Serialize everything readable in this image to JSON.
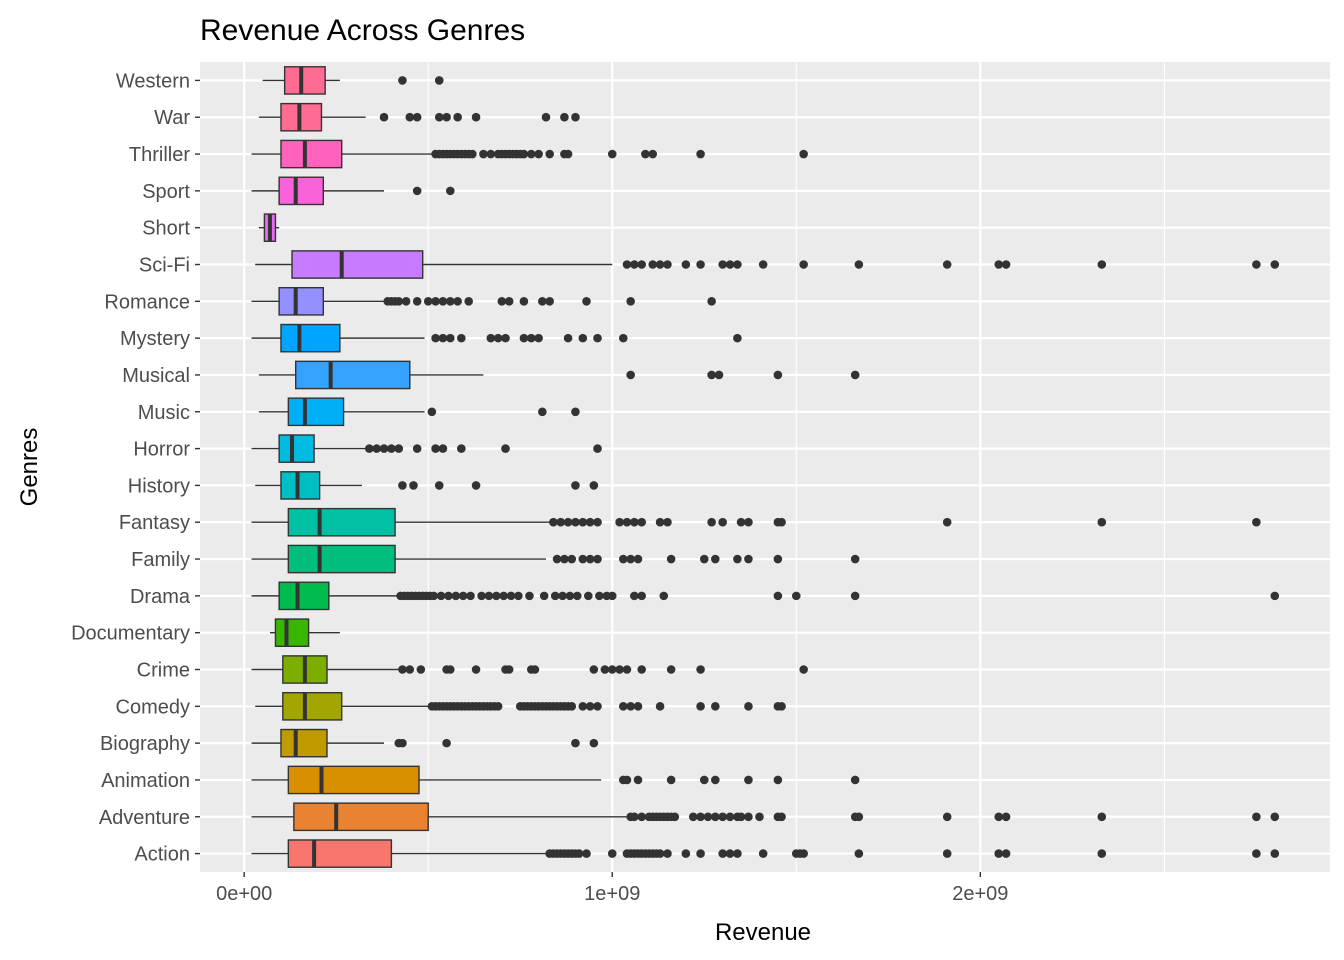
{
  "chart_data": {
    "type": "boxplot",
    "title": "Revenue Across Genres",
    "xlabel": "Revenue",
    "ylabel": "Genres",
    "xlim": [
      -120000000,
      2950000000
    ],
    "x_ticks": [
      {
        "value": 0,
        "label": "0e+00"
      },
      {
        "value": 1000000000,
        "label": "1e+09"
      },
      {
        "value": 2000000000,
        "label": "2e+09"
      }
    ],
    "x_minor_ticks": [
      500000000,
      1500000000,
      2500000000
    ],
    "grid": true,
    "legend": "none",
    "categories": [
      "Action",
      "Adventure",
      "Animation",
      "Biography",
      "Comedy",
      "Crime",
      "Documentary",
      "Drama",
      "Family",
      "Fantasy",
      "History",
      "Horror",
      "Music",
      "Musical",
      "Mystery",
      "Romance",
      "Sci-Fi",
      "Short",
      "Sport",
      "Thriller",
      "War",
      "Western"
    ],
    "colors": [
      "#F8766D",
      "#EA8331",
      "#D89000",
      "#C09B00",
      "#A3A500",
      "#7CAE00",
      "#39B600",
      "#00BB4E",
      "#00BF7D",
      "#00C1A3",
      "#00BFC4",
      "#00BAE0",
      "#00B0F6",
      "#35A2FF",
      "#00A5FF",
      "#9590FF",
      "#C77CFF",
      "#E76BF3",
      "#FA62DB",
      "#FF62BC",
      "#FF6C91",
      "#FF6C91"
    ],
    "boxes": [
      {
        "genre": "Action",
        "whisker_low": 20000000,
        "q1": 120000000,
        "median": 190000000,
        "q3": 400000000,
        "whisker_high": 820000000,
        "outliers": [
          830000000,
          840000000,
          850000000,
          860000000,
          870000000,
          880000000,
          890000000,
          900000000,
          910000000,
          930000000,
          1000000000,
          1040000000,
          1050000000,
          1060000000,
          1070000000,
          1080000000,
          1090000000,
          1100000000,
          1110000000,
          1120000000,
          1130000000,
          1150000000,
          1200000000,
          1240000000,
          1300000000,
          1320000000,
          1340000000,
          1410000000,
          1500000000,
          1510000000,
          1520000000,
          1670000000,
          1910000000,
          2050000000,
          2070000000,
          2330000000,
          2750000000,
          2800000000
        ]
      },
      {
        "genre": "Adventure",
        "whisker_low": 20000000,
        "q1": 135000000,
        "median": 250000000,
        "q3": 500000000,
        "whisker_high": 1040000000,
        "outliers": [
          1050000000,
          1060000000,
          1080000000,
          1100000000,
          1110000000,
          1120000000,
          1130000000,
          1140000000,
          1150000000,
          1160000000,
          1170000000,
          1220000000,
          1240000000,
          1260000000,
          1280000000,
          1300000000,
          1320000000,
          1340000000,
          1350000000,
          1370000000,
          1400000000,
          1450000000,
          1460000000,
          1660000000,
          1670000000,
          1910000000,
          2050000000,
          2070000000,
          2330000000,
          2750000000,
          2800000000
        ]
      },
      {
        "genre": "Animation",
        "whisker_low": 20000000,
        "q1": 120000000,
        "median": 210000000,
        "q3": 475000000,
        "whisker_high": 970000000,
        "outliers": [
          1030000000,
          1040000000,
          1070000000,
          1160000000,
          1250000000,
          1280000000,
          1370000000,
          1450000000,
          1660000000
        ]
      },
      {
        "genre": "Biography",
        "whisker_low": 20000000,
        "q1": 100000000,
        "median": 140000000,
        "q3": 225000000,
        "whisker_high": 380000000,
        "outliers": [
          420000000,
          430000000,
          550000000,
          900000000,
          950000000
        ]
      },
      {
        "genre": "Comedy",
        "whisker_low": 30000000,
        "q1": 105000000,
        "median": 165000000,
        "q3": 265000000,
        "whisker_high": 500000000,
        "outliers": [
          510000000,
          520000000,
          530000000,
          540000000,
          550000000,
          560000000,
          570000000,
          580000000,
          590000000,
          600000000,
          610000000,
          620000000,
          630000000,
          640000000,
          650000000,
          660000000,
          670000000,
          680000000,
          690000000,
          750000000,
          760000000,
          770000000,
          780000000,
          790000000,
          800000000,
          810000000,
          820000000,
          830000000,
          840000000,
          850000000,
          860000000,
          870000000,
          880000000,
          890000000,
          920000000,
          940000000,
          960000000,
          1030000000,
          1050000000,
          1070000000,
          1130000000,
          1240000000,
          1280000000,
          1370000000,
          1450000000,
          1460000000
        ]
      },
      {
        "genre": "Crime",
        "whisker_low": 20000000,
        "q1": 105000000,
        "median": 165000000,
        "q3": 225000000,
        "whisker_high": 420000000,
        "outliers": [
          430000000,
          450000000,
          480000000,
          550000000,
          560000000,
          630000000,
          710000000,
          720000000,
          780000000,
          790000000,
          950000000,
          980000000,
          1000000000,
          1020000000,
          1040000000,
          1080000000,
          1160000000,
          1240000000,
          1520000000
        ]
      },
      {
        "genre": "Documentary",
        "whisker_low": 70000000,
        "q1": 85000000,
        "median": 115000000,
        "q3": 175000000,
        "whisker_high": 260000000,
        "outliers": []
      },
      {
        "genre": "Drama",
        "whisker_low": 20000000,
        "q1": 95000000,
        "median": 145000000,
        "q3": 230000000,
        "whisker_high": 420000000,
        "outliers": [
          425000000,
          435000000,
          445000000,
          455000000,
          465000000,
          475000000,
          485000000,
          495000000,
          505000000,
          515000000,
          535000000,
          555000000,
          575000000,
          595000000,
          615000000,
          645000000,
          665000000,
          685000000,
          705000000,
          725000000,
          745000000,
          775000000,
          815000000,
          845000000,
          865000000,
          885000000,
          905000000,
          935000000,
          965000000,
          985000000,
          1000000000,
          1060000000,
          1080000000,
          1140000000,
          1450000000,
          1500000000,
          1660000000,
          2800000000
        ]
      },
      {
        "genre": "Family",
        "whisker_low": 20000000,
        "q1": 120000000,
        "median": 205000000,
        "q3": 410000000,
        "whisker_high": 820000000,
        "outliers": [
          850000000,
          870000000,
          890000000,
          920000000,
          940000000,
          960000000,
          1030000000,
          1050000000,
          1070000000,
          1160000000,
          1250000000,
          1280000000,
          1340000000,
          1370000000,
          1450000000,
          1660000000
        ]
      },
      {
        "genre": "Fantasy",
        "whisker_low": 20000000,
        "q1": 120000000,
        "median": 205000000,
        "q3": 410000000,
        "whisker_high": 830000000,
        "outliers": [
          840000000,
          860000000,
          880000000,
          900000000,
          920000000,
          940000000,
          960000000,
          1020000000,
          1040000000,
          1060000000,
          1080000000,
          1130000000,
          1150000000,
          1270000000,
          1300000000,
          1350000000,
          1370000000,
          1450000000,
          1460000000,
          1910000000,
          2330000000,
          2750000000
        ]
      },
      {
        "genre": "History",
        "whisker_low": 30000000,
        "q1": 100000000,
        "median": 145000000,
        "q3": 205000000,
        "whisker_high": 320000000,
        "outliers": [
          430000000,
          460000000,
          530000000,
          630000000,
          900000000,
          950000000
        ]
      },
      {
        "genre": "Horror",
        "whisker_low": 20000000,
        "q1": 95000000,
        "median": 130000000,
        "q3": 190000000,
        "whisker_high": 330000000,
        "outliers": [
          340000000,
          360000000,
          380000000,
          400000000,
          420000000,
          470000000,
          520000000,
          540000000,
          590000000,
          710000000,
          960000000
        ]
      },
      {
        "genre": "Music",
        "whisker_low": 40000000,
        "q1": 120000000,
        "median": 165000000,
        "q3": 270000000,
        "whisker_high": 490000000,
        "outliers": [
          510000000,
          810000000,
          900000000
        ]
      },
      {
        "genre": "Musical",
        "whisker_low": 40000000,
        "q1": 140000000,
        "median": 235000000,
        "q3": 450000000,
        "whisker_high": 650000000,
        "outliers": [
          1050000000,
          1270000000,
          1290000000,
          1450000000,
          1660000000
        ]
      },
      {
        "genre": "Mystery",
        "whisker_low": 20000000,
        "q1": 100000000,
        "median": 150000000,
        "q3": 260000000,
        "whisker_high": 490000000,
        "outliers": [
          520000000,
          540000000,
          560000000,
          590000000,
          670000000,
          690000000,
          710000000,
          760000000,
          780000000,
          800000000,
          880000000,
          920000000,
          960000000,
          1030000000,
          1340000000
        ]
      },
      {
        "genre": "Romance",
        "whisker_low": 20000000,
        "q1": 95000000,
        "median": 140000000,
        "q3": 215000000,
        "whisker_high": 380000000,
        "outliers": [
          390000000,
          400000000,
          410000000,
          420000000,
          440000000,
          470000000,
          500000000,
          520000000,
          540000000,
          560000000,
          580000000,
          610000000,
          700000000,
          720000000,
          760000000,
          810000000,
          830000000,
          930000000,
          1050000000,
          1270000000
        ]
      },
      {
        "genre": "Sci-Fi",
        "whisker_low": 30000000,
        "q1": 130000000,
        "median": 265000000,
        "q3": 485000000,
        "whisker_high": 1000000000,
        "outliers": [
          1040000000,
          1060000000,
          1080000000,
          1110000000,
          1130000000,
          1150000000,
          1200000000,
          1240000000,
          1300000000,
          1320000000,
          1340000000,
          1410000000,
          1520000000,
          1670000000,
          1910000000,
          2050000000,
          2070000000,
          2330000000,
          2750000000,
          2800000000
        ]
      },
      {
        "genre": "Short",
        "whisker_low": 40000000,
        "q1": 55000000,
        "median": 70000000,
        "q3": 85000000,
        "whisker_high": 95000000,
        "outliers": []
      },
      {
        "genre": "Sport",
        "whisker_low": 20000000,
        "q1": 95000000,
        "median": 140000000,
        "q3": 215000000,
        "whisker_high": 380000000,
        "outliers": [
          470000000,
          560000000
        ]
      },
      {
        "genre": "Thriller",
        "whisker_low": 20000000,
        "q1": 100000000,
        "median": 165000000,
        "q3": 265000000,
        "whisker_high": 510000000,
        "outliers": [
          520000000,
          530000000,
          540000000,
          550000000,
          560000000,
          570000000,
          580000000,
          590000000,
          600000000,
          610000000,
          620000000,
          650000000,
          670000000,
          690000000,
          700000000,
          710000000,
          720000000,
          730000000,
          740000000,
          750000000,
          760000000,
          780000000,
          800000000,
          830000000,
          870000000,
          880000000,
          1000000000,
          1090000000,
          1110000000,
          1240000000,
          1520000000
        ]
      },
      {
        "genre": "War",
        "whisker_low": 40000000,
        "q1": 100000000,
        "median": 150000000,
        "q3": 210000000,
        "whisker_high": 330000000,
        "outliers": [
          380000000,
          450000000,
          470000000,
          530000000,
          550000000,
          580000000,
          630000000,
          820000000,
          870000000,
          900000000
        ]
      },
      {
        "genre": "Western",
        "whisker_low": 50000000,
        "q1": 110000000,
        "median": 155000000,
        "q3": 220000000,
        "whisker_high": 260000000,
        "outliers": [
          430000000,
          530000000
        ]
      }
    ]
  }
}
